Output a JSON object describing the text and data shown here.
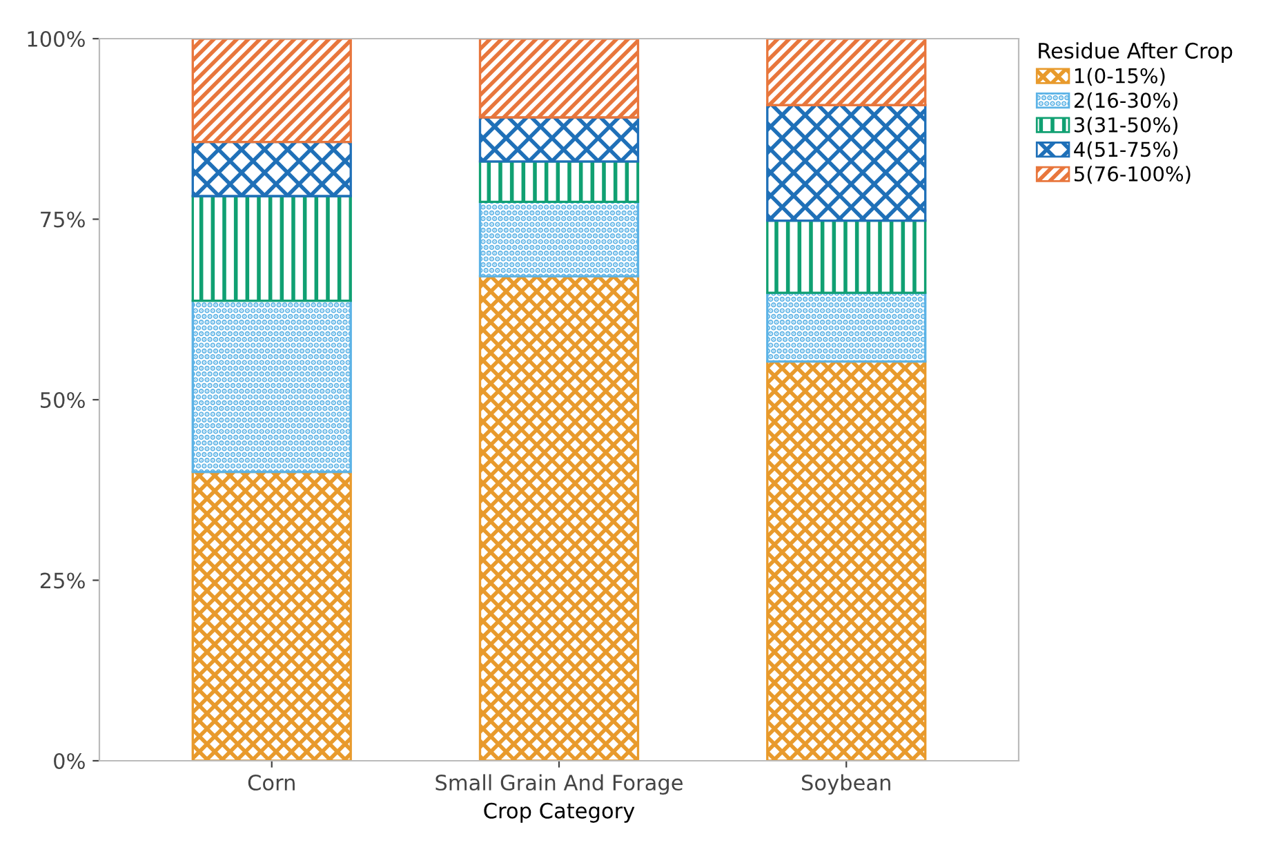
{
  "chart_data": {
    "type": "bar",
    "stacked": true,
    "xlabel": "Crop Category",
    "legend_title": "Residue After Crop",
    "legend": "top right",
    "categories": [
      "Corn",
      "Small Grain And Forage",
      "Soybean"
    ],
    "series": [
      {
        "name": "1(0-15%)",
        "color": "#e89a2c",
        "values": [
          40.0,
          67.1,
          55.3
        ]
      },
      {
        "name": "2(16-30%)",
        "color": "#5cb3e6",
        "values": [
          23.7,
          10.3,
          9.5
        ]
      },
      {
        "name": "3(31-50%)",
        "color": "#10a072",
        "values": [
          14.5,
          5.6,
          10.0
        ]
      },
      {
        "name": "4(51-75%)",
        "color": "#1f70b8",
        "values": [
          7.5,
          6.1,
          16.0
        ]
      },
      {
        "name": "5(76-100%)",
        "color": "#e8763c",
        "values": [
          14.3,
          10.9,
          9.2
        ]
      }
    ],
    "ylim": [
      0,
      100
    ],
    "yticks": [
      {
        "value": 0,
        "label": "0%"
      },
      {
        "value": 25,
        "label": "25%"
      },
      {
        "value": 50,
        "label": "50%"
      },
      {
        "value": 75,
        "label": "75%"
      },
      {
        "value": 100,
        "label": "100%"
      }
    ]
  }
}
